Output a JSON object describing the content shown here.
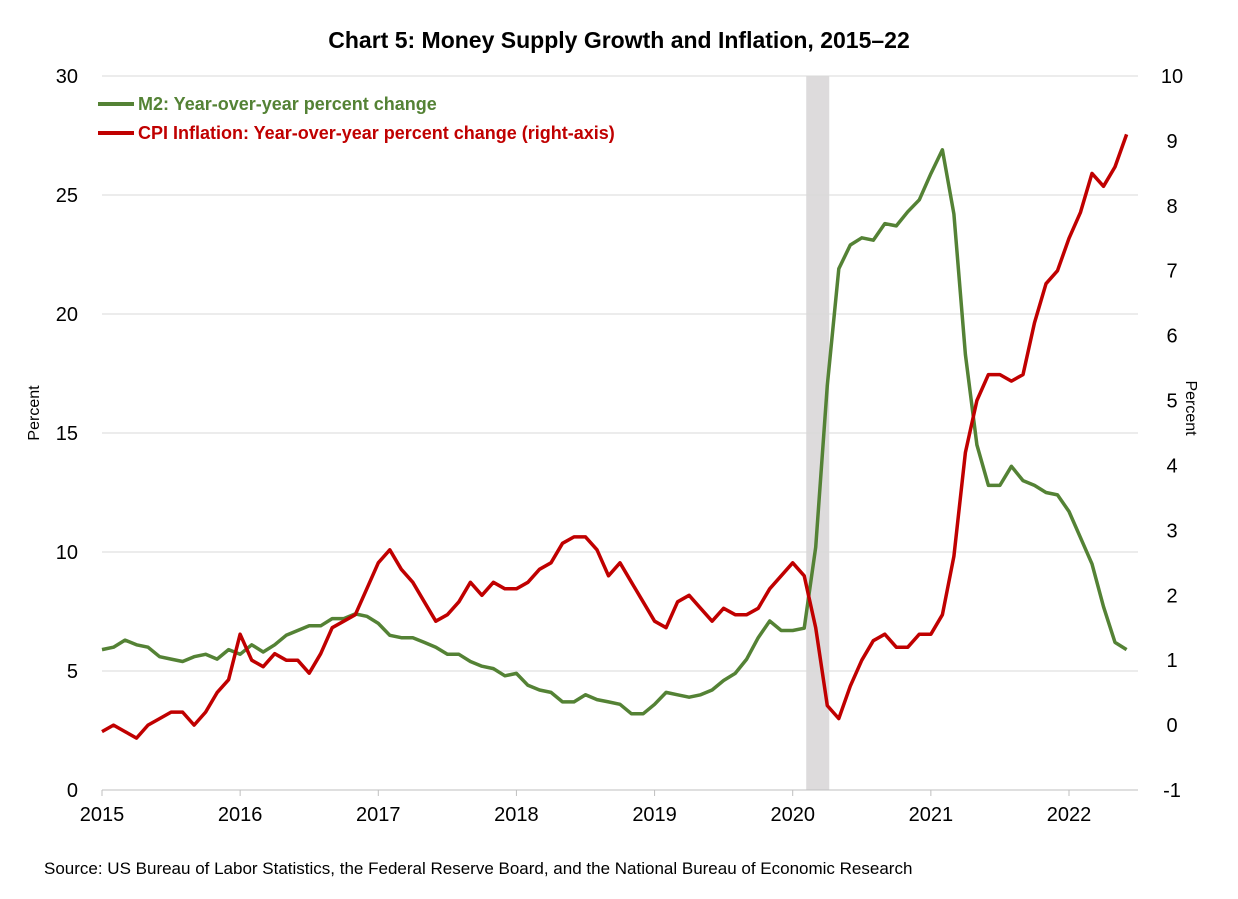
{
  "chart_data": {
    "type": "line",
    "title": "Chart 5: Money Supply Growth and Inflation, 2015–22",
    "ylabel_left": "Percent",
    "ylabel_right": "Percent",
    "source": "Source: US Bureau of Labor Statistics, the Federal Reserve Board, and the National Bureau of Economic Research",
    "x_start": "2015-01",
    "frequency": "monthly",
    "x_tick_labels": [
      "2015",
      "2016",
      "2017",
      "2018",
      "2019",
      "2020",
      "2021",
      "2022"
    ],
    "xlim": [
      2015,
      2022.5
    ],
    "ylim_left": [
      0,
      30
    ],
    "y_ticks_left": [
      0,
      5,
      10,
      15,
      20,
      25,
      30
    ],
    "ylim_right": [
      -1,
      10
    ],
    "y_ticks_right": [
      -1,
      0,
      1,
      2,
      3,
      4,
      5,
      6,
      7,
      8,
      9,
      10
    ],
    "grid": "horizontal",
    "legend_placement": "top-left",
    "recession_shading": {
      "start": "2020-02",
      "end": "2020-04",
      "color": "#dddbdc"
    },
    "series": [
      {
        "name": "M2: Year-over-year percent change",
        "axis": "left",
        "color": "#548235",
        "values": [
          5.9,
          6.0,
          6.3,
          6.1,
          6.0,
          5.6,
          5.5,
          5.4,
          5.6,
          5.7,
          5.5,
          5.9,
          5.7,
          6.1,
          5.8,
          6.1,
          6.5,
          6.7,
          6.9,
          6.9,
          7.2,
          7.2,
          7.4,
          7.3,
          7.0,
          6.5,
          6.4,
          6.4,
          6.2,
          6.0,
          5.7,
          5.7,
          5.4,
          5.2,
          5.1,
          4.8,
          4.9,
          4.4,
          4.2,
          4.1,
          3.7,
          3.7,
          4.0,
          3.8,
          3.7,
          3.6,
          3.2,
          3.2,
          3.6,
          4.1,
          4.0,
          3.9,
          4.0,
          4.2,
          4.6,
          4.9,
          5.5,
          6.4,
          7.1,
          6.7,
          6.7,
          6.8,
          10.2,
          17.0,
          21.9,
          22.9,
          23.2,
          23.1,
          23.8,
          23.7,
          24.3,
          24.8,
          25.9,
          26.9,
          24.2,
          18.3,
          14.5,
          12.8,
          12.8,
          13.6,
          13.0,
          12.8,
          12.5,
          12.4,
          11.7,
          10.6,
          9.5,
          7.7,
          6.2,
          5.9
        ]
      },
      {
        "name": "CPI Inflation: Year-over-year percent change (right-axis)",
        "axis": "right",
        "color": "#c00000",
        "values": [
          -0.1,
          0.0,
          -0.1,
          -0.2,
          0.0,
          0.1,
          0.2,
          0.2,
          0.0,
          0.2,
          0.5,
          0.7,
          1.4,
          1.0,
          0.9,
          1.1,
          1.0,
          1.0,
          0.8,
          1.1,
          1.5,
          1.6,
          1.7,
          2.1,
          2.5,
          2.7,
          2.4,
          2.2,
          1.9,
          1.6,
          1.7,
          1.9,
          2.2,
          2.0,
          2.2,
          2.1,
          2.1,
          2.2,
          2.4,
          2.5,
          2.8,
          2.9,
          2.9,
          2.7,
          2.3,
          2.5,
          2.2,
          1.9,
          1.6,
          1.5,
          1.9,
          2.0,
          1.8,
          1.6,
          1.8,
          1.7,
          1.7,
          1.8,
          2.1,
          2.3,
          2.5,
          2.3,
          1.5,
          0.3,
          0.1,
          0.6,
          1.0,
          1.3,
          1.4,
          1.2,
          1.2,
          1.4,
          1.4,
          1.7,
          2.6,
          4.2,
          5.0,
          5.4,
          5.4,
          5.3,
          5.4,
          6.2,
          6.8,
          7.0,
          7.5,
          7.9,
          8.5,
          8.3,
          8.6,
          9.1
        ]
      }
    ]
  }
}
